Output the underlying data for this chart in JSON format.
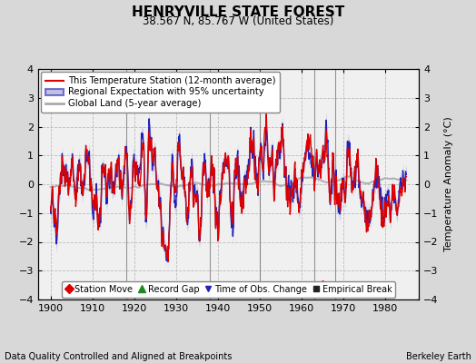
{
  "title": "HENRYVILLE STATE FOREST",
  "subtitle": "38.567 N, 85.767 W (United States)",
  "ylabel": "Temperature Anomaly (°C)",
  "xlabel_note": "Data Quality Controlled and Aligned at Breakpoints",
  "credit": "Berkeley Earth",
  "xlim": [
    1897,
    1988
  ],
  "ylim": [
    -4,
    4
  ],
  "yticks": [
    -4,
    -3,
    -2,
    -1,
    0,
    1,
    2,
    3,
    4
  ],
  "xticks": [
    1900,
    1910,
    1920,
    1930,
    1940,
    1950,
    1960,
    1970,
    1980
  ],
  "bg_color": "#d8d8d8",
  "plot_bg": "#f0f0f0",
  "grid_color": "#bbbbbb",
  "station_color": "#dd0000",
  "regional_color": "#2222bb",
  "fill_color": "#9999cc",
  "global_color": "#aaaaaa",
  "legend_items": [
    {
      "label": "This Temperature Station (12-month average)",
      "color": "#dd0000",
      "lw": 1.5
    },
    {
      "label": "Regional Expectation with 95% uncertainty",
      "color": "#2222bb",
      "lw": 1.5
    },
    {
      "label": "Global Land (5-year average)",
      "color": "#aaaaaa",
      "lw": 2.0
    }
  ],
  "marker_legend": [
    {
      "label": "Station Move",
      "color": "#dd0000",
      "marker": "D"
    },
    {
      "label": "Record Gap",
      "color": "#228822",
      "marker": "^"
    },
    {
      "label": "Time of Obs. Change",
      "color": "#2222bb",
      "marker": "v"
    },
    {
      "label": "Empirical Break",
      "color": "#222222",
      "marker": "s"
    }
  ],
  "station_moves": [
    1965
  ],
  "record_gaps": [],
  "obs_changes": [],
  "empirical_breaks": [
    1918,
    1938,
    1950,
    1963,
    1968
  ],
  "vlines": [
    1918,
    1938,
    1950,
    1963,
    1968
  ],
  "vline_color": "#555555",
  "vline_alpha": 0.6
}
